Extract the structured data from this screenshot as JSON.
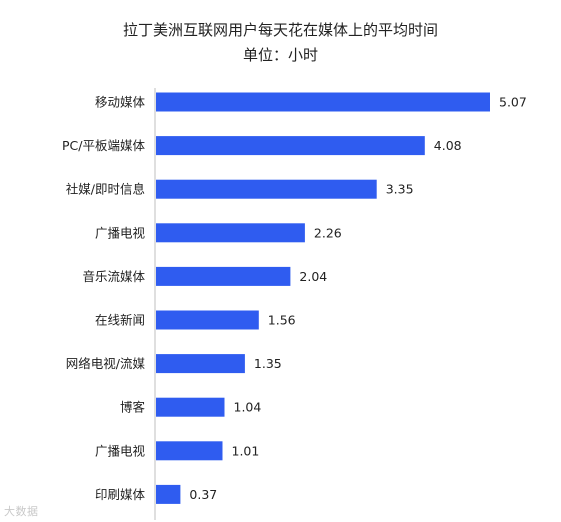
{
  "chart_data": {
    "type": "bar",
    "orientation": "horizontal",
    "title": "拉丁美洲互联网用户每天花在媒体上的平均时间",
    "subtitle": "单位：小时",
    "categories": [
      "移动媒体",
      "PC/平板端媒体",
      "社媒/即时信息",
      "广播电视",
      "音乐流媒体",
      "在线新闻",
      "网络电视/流媒",
      "博客",
      "广播电视",
      "印刷媒体"
    ],
    "values": [
      5.07,
      4.08,
      3.35,
      2.26,
      2.04,
      1.56,
      1.35,
      1.04,
      1.01,
      0.37
    ],
    "value_labels": [
      "5.07",
      "4.08",
      "3.35",
      "2.26",
      "2.04",
      "1.56",
      "1.35",
      "1.04",
      "1.01",
      "0.37"
    ],
    "xlim": [
      0,
      5.07
    ],
    "grid": false,
    "legend": "none",
    "bar_color": "#2f5cf0"
  },
  "watermark": "大数据"
}
